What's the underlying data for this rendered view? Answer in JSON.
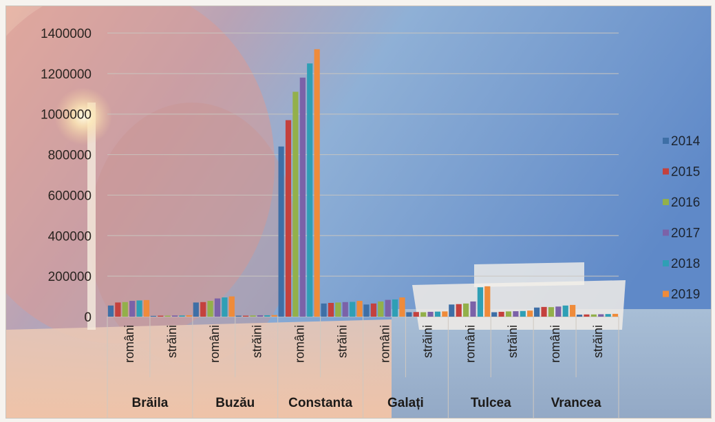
{
  "chart_data": {
    "type": "bar",
    "groups": [
      "Brăila",
      "Buzău",
      "Constanta",
      "Galați",
      "Tulcea",
      "Vrancea"
    ],
    "subcategories": [
      "români",
      "străini"
    ],
    "ylim": [
      0,
      1400000
    ],
    "yticks": [
      "0",
      "200000",
      "400000",
      "600000",
      "800000",
      "1000000",
      "1200000",
      "1400000"
    ],
    "grid": true,
    "legend_position": "right",
    "series": [
      {
        "name": "2014",
        "color": "#3e6fa6",
        "values": [
          55000,
          4000,
          70000,
          5000,
          840000,
          65000,
          60000,
          22000,
          60000,
          22000,
          45000,
          10000
        ]
      },
      {
        "name": "2015",
        "color": "#c4413d",
        "values": [
          70000,
          5000,
          72000,
          5000,
          970000,
          68000,
          65000,
          23000,
          62000,
          24000,
          48000,
          11000
        ]
      },
      {
        "name": "2016",
        "color": "#93b04a",
        "values": [
          72000,
          5000,
          78000,
          6000,
          1110000,
          70000,
          75000,
          22000,
          65000,
          26000,
          47000,
          11000
        ]
      },
      {
        "name": "2017",
        "color": "#7b62a8",
        "values": [
          78000,
          6000,
          90000,
          7000,
          1180000,
          72000,
          83000,
          24000,
          75000,
          27000,
          50000,
          12000
        ]
      },
      {
        "name": "2018",
        "color": "#2f9fb5",
        "values": [
          80000,
          6000,
          95000,
          7000,
          1250000,
          73000,
          85000,
          25000,
          145000,
          28000,
          55000,
          13000
        ]
      },
      {
        "name": "2019",
        "color": "#ef8b3a",
        "values": [
          82000,
          7000,
          100000,
          8000,
          1320000,
          78000,
          95000,
          26000,
          150000,
          30000,
          58000,
          14000
        ]
      }
    ]
  }
}
